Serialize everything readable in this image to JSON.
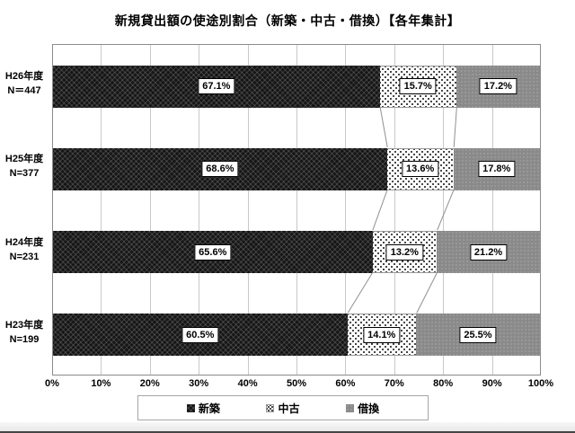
{
  "title": "新規貸出額の使途別割合（新築・中古・借換）【各年集計】",
  "chart_data": {
    "type": "bar",
    "orientation": "horizontal",
    "stacked": true,
    "title": "新規貸出額の使途別割合（新築・中古・借換）【各年集計】",
    "categories": [
      {
        "year_label": "H26年度",
        "n_label": "N＝447"
      },
      {
        "year_label": "H25年度",
        "n_label": "N=377"
      },
      {
        "year_label": "H24年度",
        "n_label": "N=231"
      },
      {
        "year_label": "H23年度",
        "n_label": "N=199"
      }
    ],
    "series": [
      {
        "name": "新築",
        "style": "seg-shinchiku",
        "color": "#161616",
        "values": [
          67.1,
          68.6,
          65.6,
          60.5
        ]
      },
      {
        "name": "中古",
        "style": "seg-chuko",
        "color": "#ffffff",
        "values": [
          15.7,
          13.6,
          13.2,
          14.1
        ]
      },
      {
        "name": "借換",
        "style": "seg-karikae",
        "color": "#8a8a8a",
        "values": [
          17.2,
          17.8,
          21.2,
          25.5
        ]
      }
    ],
    "data_labels": [
      [
        "67.1%",
        "15.7%",
        "17.2%"
      ],
      [
        "68.6%",
        "13.6%",
        "17.8%"
      ],
      [
        "65.6%",
        "13.2%",
        "21.2%"
      ],
      [
        "60.5%",
        "14.1%",
        "25.5%"
      ]
    ],
    "x_ticks": [
      "0%",
      "10%",
      "20%",
      "30%",
      "40%",
      "50%",
      "60%",
      "70%",
      "80%",
      "90%",
      "100%"
    ],
    "xlim": [
      0,
      100
    ],
    "grid": true,
    "gridline_color": "#c9c9c9",
    "series_line_color": "#909090",
    "legend_position": "bottom",
    "legend_entries": [
      "新築",
      "中古",
      "借換"
    ]
  }
}
